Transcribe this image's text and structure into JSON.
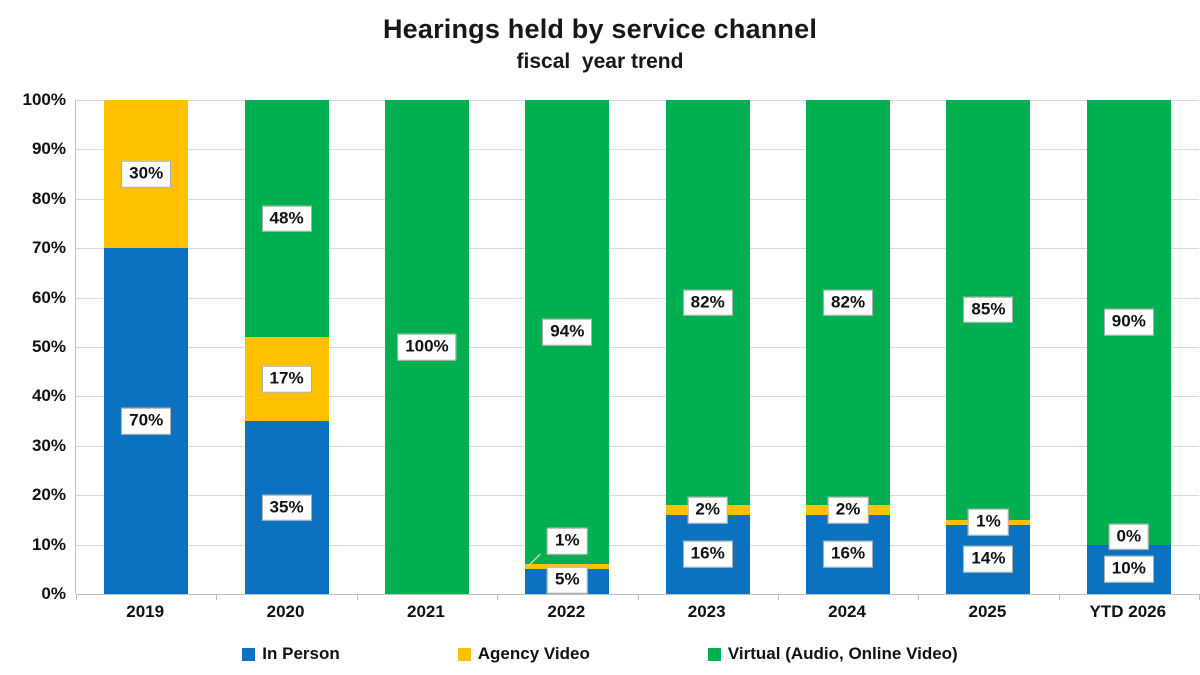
{
  "title": "Hearings held by service channel",
  "subtitle": "fiscal  year trend",
  "colors": {
    "background": "#FFFFFF",
    "grid": "#D9D9D9",
    "axis": "#BFBFBF",
    "label_border": "#ABABAB",
    "text": "#111111",
    "in_person_blue": "#0B72C2",
    "agency_video_gold": "#FFC000",
    "virtual_green": "#00AF50"
  },
  "chart_data": {
    "type": "bar",
    "stacked": true,
    "title": "Hearings held by service channel",
    "subtitle": "fiscal  year trend",
    "categories": [
      "2019",
      "2020",
      "2021",
      "2022",
      "2023",
      "2024",
      "2025",
      "YTD 2026"
    ],
    "series": [
      {
        "name": "In Person",
        "color": "#0B72C2",
        "values": [
          70,
          35,
          0,
          5,
          16,
          16,
          14,
          10
        ]
      },
      {
        "name": "Agency Video",
        "color": "#FFC000",
        "values": [
          30,
          17,
          0,
          1,
          2,
          2,
          1,
          0
        ]
      },
      {
        "name": "Virtual (Audio, Online Video)",
        "color": "#00AF50",
        "values": [
          0,
          48,
          100,
          94,
          82,
          82,
          85,
          90
        ]
      }
    ],
    "y_ticks": [
      "100%",
      "90%",
      "80%",
      "70%",
      "60%",
      "50%",
      "40%",
      "30%",
      "20%",
      "10%",
      "0%"
    ],
    "ylim": [
      0,
      100
    ],
    "grid": true,
    "legend_position": "bottom",
    "data_labels": [
      {
        "category": "2019",
        "labels": [
          {
            "text": "70%",
            "series": "In Person",
            "center_pct": 35
          },
          {
            "text": "30%",
            "series": "Agency Video",
            "center_pct": 85
          }
        ]
      },
      {
        "category": "2020",
        "labels": [
          {
            "text": "35%",
            "series": "In Person",
            "center_pct": 17.5
          },
          {
            "text": "17%",
            "series": "Agency Video",
            "center_pct": 43.5
          },
          {
            "text": "48%",
            "series": "Virtual (Audio, Online Video)",
            "center_pct": 76
          }
        ]
      },
      {
        "category": "2021",
        "labels": [
          {
            "text": "100%",
            "series": "Virtual (Audio, Online Video)",
            "center_pct": 50
          }
        ]
      },
      {
        "category": "2022",
        "labels": [
          {
            "text": "5%",
            "series": "In Person",
            "center_pct": 2.8
          },
          {
            "text": "1%",
            "series": "Agency Video",
            "center_pct": 10.7,
            "callout_to_pct": 5.5
          },
          {
            "text": "94%",
            "series": "Virtual (Audio, Online Video)",
            "center_pct": 53
          }
        ]
      },
      {
        "category": "2023",
        "labels": [
          {
            "text": "16%",
            "series": "In Person",
            "center_pct": 8
          },
          {
            "text": "2%",
            "series": "Agency Video",
            "center_pct": 17
          },
          {
            "text": "82%",
            "series": "Virtual (Audio, Online Video)",
            "center_pct": 59
          }
        ]
      },
      {
        "category": "2024",
        "labels": [
          {
            "text": "16%",
            "series": "In Person",
            "center_pct": 8
          },
          {
            "text": "2%",
            "series": "Agency Video",
            "center_pct": 17
          },
          {
            "text": "82%",
            "series": "Virtual (Audio, Online Video)",
            "center_pct": 59
          }
        ]
      },
      {
        "category": "2025",
        "labels": [
          {
            "text": "14%",
            "series": "In Person",
            "center_pct": 7
          },
          {
            "text": "1%",
            "series": "Agency Video",
            "center_pct": 14.5
          },
          {
            "text": "85%",
            "series": "Virtual (Audio, Online Video)",
            "center_pct": 57.5
          }
        ]
      },
      {
        "category": "YTD 2026",
        "labels": [
          {
            "text": "10%",
            "series": "In Person",
            "center_pct": 5
          },
          {
            "text": "0%",
            "series": "Agency Video",
            "center_pct": 11.6
          },
          {
            "text": "90%",
            "series": "Virtual (Audio, Online Video)",
            "center_pct": 55
          }
        ]
      }
    ]
  }
}
